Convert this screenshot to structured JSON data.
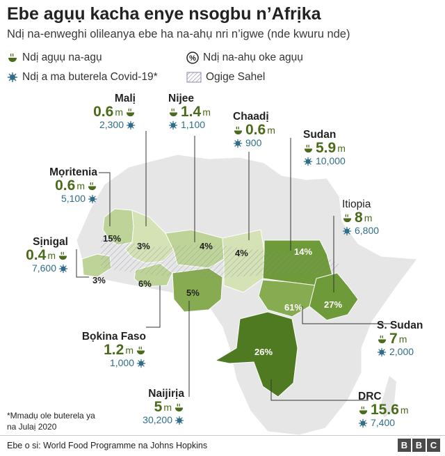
{
  "title": "Ebe agụụ kacha enye nsogbu n’Afrịka",
  "subtitle": "Ndị na-enweghi olileanya ebe ha na-ahụ nri n’igwe (nde kwuru nde)",
  "legend": {
    "hunger": "Ndị agụụ na-agụ",
    "percent": "Ndị na-ahụ oke agụụ",
    "covid": "Ndị a ma buterela Covid-19*",
    "sahel": "Ogige Sahel"
  },
  "colors": {
    "map_base": "#e6e6e6",
    "tint_1": "#d4e2b5",
    "tint_2": "#bdd397",
    "tint_3": "#a6c37a",
    "tint_4": "#86ab50",
    "tint_5": "#6f9a3a",
    "tint_6": "#4f7a22",
    "value_green": "#4a6b1a",
    "covid_blue": "#2f6d8a"
  },
  "icons": {
    "hunger": "bowl-icon",
    "percent": "percent-icon",
    "covid": "virus-icon",
    "sahel": "hatch-swatch"
  },
  "countries": {
    "mali": {
      "name": "Malị",
      "hunger": "0.6",
      "unit": "m",
      "cases": "2,300",
      "percent": "3%"
    },
    "niger": {
      "name": "Nijee",
      "hunger": "1.4",
      "unit": "m",
      "cases": "1,100",
      "percent": "4%"
    },
    "chad": {
      "name": "Chaadị",
      "hunger": "0.6",
      "unit": "m",
      "cases": "900",
      "percent": "4%"
    },
    "sudan": {
      "name": "Sudan",
      "hunger": "5.9",
      "unit": "m",
      "cases": "10,000",
      "percent": "14%"
    },
    "mauritania": {
      "name": "Mọritenia",
      "hunger": "0.6",
      "unit": "m",
      "cases": "5,100",
      "percent": "15%"
    },
    "ethiopia": {
      "name": "Itiopia",
      "hunger": "8",
      "unit": "m",
      "cases": "6,800",
      "percent": "27%"
    },
    "senegal": {
      "name": "Sịnigal",
      "hunger": "0.4",
      "unit": "m",
      "cases": "7,600",
      "percent": "3%"
    },
    "south_sudan": {
      "name": "S. Sudan",
      "hunger": "7",
      "unit": "m",
      "cases": "2,000",
      "percent": "61%"
    },
    "burkina": {
      "name": "Bọkina Faso",
      "hunger": "1.2",
      "unit": "m",
      "cases": "1,000",
      "percent": "6%"
    },
    "nigeria": {
      "name": "Naijirịa",
      "hunger": "5",
      "unit": "m",
      "cases": "30,200",
      "percent": "5%"
    },
    "drc": {
      "name": "DRC",
      "hunger": "15.6",
      "unit": "m",
      "cases": "7,400",
      "percent": "26%"
    }
  },
  "note": "*Mmadụ ole buterela ya na Julaị 2020",
  "source": "Ebe o si: World Food Programme na Johns Hopkins",
  "logo": [
    "B",
    "B",
    "C"
  ]
}
